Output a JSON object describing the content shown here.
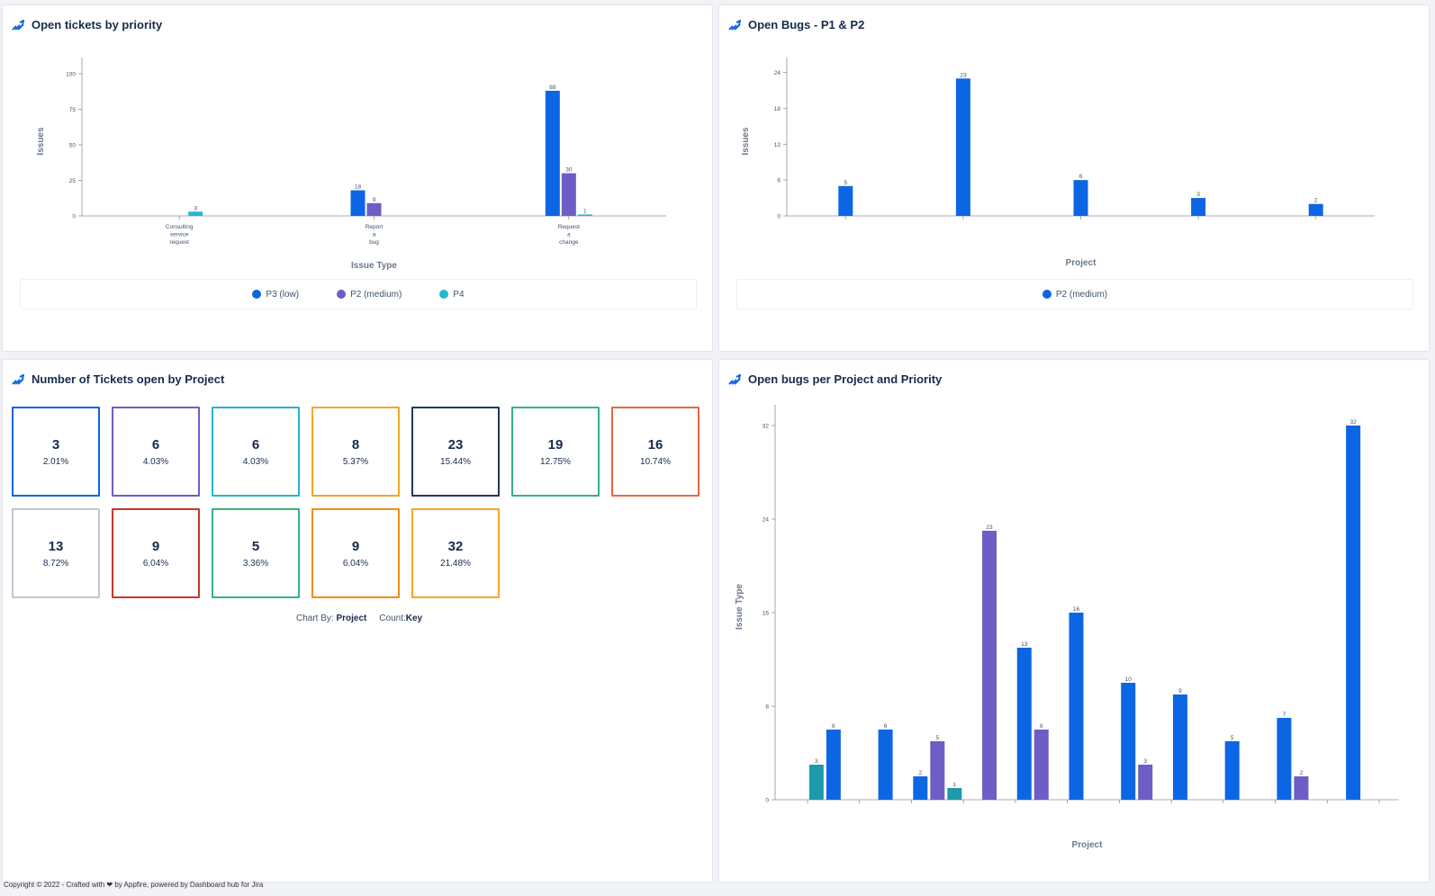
{
  "colors": {
    "P3 (low)": "#0c66e4",
    "P2 (medium)": "#6e5dc6",
    "P4": "#1d9aaa",
    "logo": "#0c66e4"
  },
  "panels": {
    "priority": {
      "title": "Open tickets by priority",
      "legend": [
        {
          "label": "P3 (low)",
          "color": "#0c66e4"
        },
        {
          "label": "P2 (medium)",
          "color": "#6e5dc6"
        },
        {
          "label": "P4",
          "color": "#22b8cf"
        }
      ],
      "chart_data": {
        "type": "bar",
        "ylabel": "Issues",
        "xlabel": "Issue Type",
        "ylim": [
          0,
          105
        ],
        "yticks": [
          0,
          25,
          50,
          75,
          100
        ],
        "categories": [
          [
            "Consulting",
            "service",
            "request"
          ],
          [
            "Report",
            "a",
            "bug"
          ],
          [
            "Request",
            "a",
            "change"
          ]
        ],
        "series": [
          {
            "name": "P3 (low)",
            "color": "#0c66e4",
            "values": [
              null,
              18,
              88
            ]
          },
          {
            "name": "P2 (medium)",
            "color": "#6e5dc6",
            "values": [
              null,
              9,
              30
            ]
          },
          {
            "name": "P4",
            "color": "#22b8cf",
            "values": [
              3,
              null,
              1
            ]
          }
        ]
      }
    },
    "bugs": {
      "title": "Open Bugs - P1 & P2",
      "legend": [
        {
          "label": "P2 (medium)",
          "color": "#0c66e4"
        }
      ],
      "chart_data": {
        "type": "bar",
        "ylabel": "Issues",
        "xlabel": "Project",
        "ylim": [
          0,
          25
        ],
        "yticks": [
          0,
          6,
          12,
          18,
          24
        ],
        "categories": [
          "",
          "",
          "",
          "",
          ""
        ],
        "series": [
          {
            "name": "P2 (medium)",
            "color": "#0c66e4",
            "values": [
              5,
              23,
              6,
              3,
              2
            ]
          }
        ]
      }
    },
    "tickets": {
      "title": "Number of Tickets open by Project",
      "tiles": [
        {
          "count": "3",
          "pct": "2.01%",
          "color": "#0c66e4"
        },
        {
          "count": "6",
          "pct": "4.03%",
          "color": "#6e5dc6"
        },
        {
          "count": "6",
          "pct": "4.03%",
          "color": "#22b8cf"
        },
        {
          "count": "8",
          "pct": "5.37%",
          "color": "#f5a623"
        },
        {
          "count": "23",
          "pct": "15.44%",
          "color": "#253858"
        },
        {
          "count": "19",
          "pct": "12.75%",
          "color": "#36b37e"
        },
        {
          "count": "16",
          "pct": "10.74%",
          "color": "#e8663c"
        },
        {
          "count": "13",
          "pct": "8.72%",
          "color": "#c1c7d0"
        },
        {
          "count": "9",
          "pct": "6.04%",
          "color": "#c9372c"
        },
        {
          "count": "5",
          "pct": "3.36%",
          "color": "#36b37e"
        },
        {
          "count": "9",
          "pct": "6.04%",
          "color": "#f18d13"
        },
        {
          "count": "32",
          "pct": "21.48%",
          "color": "#f5a623"
        }
      ],
      "caption": {
        "chart_by_label": "Chart By:",
        "chart_by_value": "Project",
        "count_label": "Count:",
        "count_value": "Key"
      }
    },
    "perproject": {
      "title": "Open bugs per Project and Priority",
      "chart_data": {
        "type": "bar",
        "ylabel": "Issue Type",
        "xlabel": "Project",
        "ylim": [
          0,
          33
        ],
        "yticks": [
          0,
          8,
          16,
          24,
          32
        ],
        "groups": 11,
        "bars": [
          {
            "group": 0,
            "slot": 0,
            "value": 3,
            "series": "P4"
          },
          {
            "group": 0,
            "slot": 1,
            "value": 6,
            "series": "P3 (low)"
          },
          {
            "group": 1,
            "slot": 1,
            "value": 6,
            "series": "P3 (low)"
          },
          {
            "group": 2,
            "slot": 0,
            "value": 2,
            "series": "P3 (low)"
          },
          {
            "group": 2,
            "slot": 1,
            "value": 5,
            "series": "P2 (medium)"
          },
          {
            "group": 2,
            "slot": 2,
            "value": 1,
            "series": "P4"
          },
          {
            "group": 3,
            "slot": 1,
            "value": 23,
            "series": "P2 (medium)"
          },
          {
            "group": 4,
            "slot": 0,
            "value": 13,
            "series": "P3 (low)"
          },
          {
            "group": 4,
            "slot": 1,
            "value": 6,
            "series": "P2 (medium)"
          },
          {
            "group": 5,
            "slot": 0,
            "value": 16,
            "series": "P3 (low)"
          },
          {
            "group": 6,
            "slot": 0,
            "value": 10,
            "series": "P3 (low)"
          },
          {
            "group": 6,
            "slot": 1,
            "value": 3,
            "series": "P2 (medium)"
          },
          {
            "group": 7,
            "slot": 0,
            "value": 9,
            "series": "P3 (low)"
          },
          {
            "group": 8,
            "slot": 0,
            "value": 5,
            "series": "P3 (low)"
          },
          {
            "group": 9,
            "slot": 0,
            "value": 7,
            "series": "P3 (low)"
          },
          {
            "group": 9,
            "slot": 1,
            "value": 2,
            "series": "P2 (medium)"
          },
          {
            "group": 10,
            "slot": 1,
            "value": 32,
            "series": "P3 (low)"
          }
        ]
      }
    }
  },
  "footer": {
    "text": "Copyright © 2022 - Crafted with ❤ by Appfire, powered by Dashboard hub for Jira"
  }
}
